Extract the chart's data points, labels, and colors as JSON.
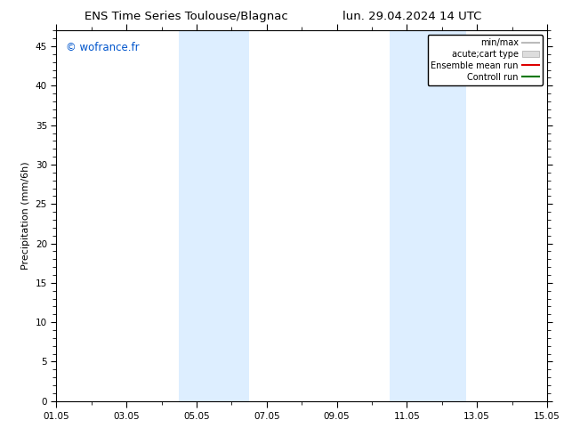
{
  "title_left": "ENS Time Series Toulouse/Blagnac",
  "title_right": "lun. 29.04.2024 14 UTC",
  "ylabel": "Precipitation (mm/6h)",
  "watermark": "© wofrance.fr",
  "watermark_color": "#0055cc",
  "xlim": [
    0,
    14
  ],
  "ylim": [
    0,
    47
  ],
  "yticks": [
    0,
    5,
    10,
    15,
    20,
    25,
    30,
    35,
    40,
    45
  ],
  "xtick_labels": [
    "01.05",
    "03.05",
    "05.05",
    "07.05",
    "09.05",
    "11.05",
    "13.05",
    "15.05"
  ],
  "xtick_positions": [
    0,
    2,
    4,
    6,
    8,
    10,
    12,
    14
  ],
  "shade_regions": [
    {
      "xmin": 3.5,
      "xmax": 5.5
    },
    {
      "xmin": 9.5,
      "xmax": 11.7
    }
  ],
  "shade_color": "#ddeeff",
  "background_color": "#ffffff",
  "legend_entries": [
    {
      "label": "min/max",
      "color": "#bbbbbb",
      "lw": 1.5,
      "ls": "-",
      "type": "line"
    },
    {
      "label": "acute;cart type",
      "color": "#dddddd",
      "lw": 6,
      "ls": "-",
      "type": "patch"
    },
    {
      "label": "Ensemble mean run",
      "color": "#dd0000",
      "lw": 1.5,
      "ls": "-",
      "type": "line"
    },
    {
      "label": "Controll run",
      "color": "#007700",
      "lw": 1.5,
      "ls": "-",
      "type": "line"
    }
  ],
  "title_fontsize": 9.5,
  "tick_fontsize": 7.5,
  "ylabel_fontsize": 8,
  "watermark_fontsize": 8.5,
  "legend_fontsize": 7
}
